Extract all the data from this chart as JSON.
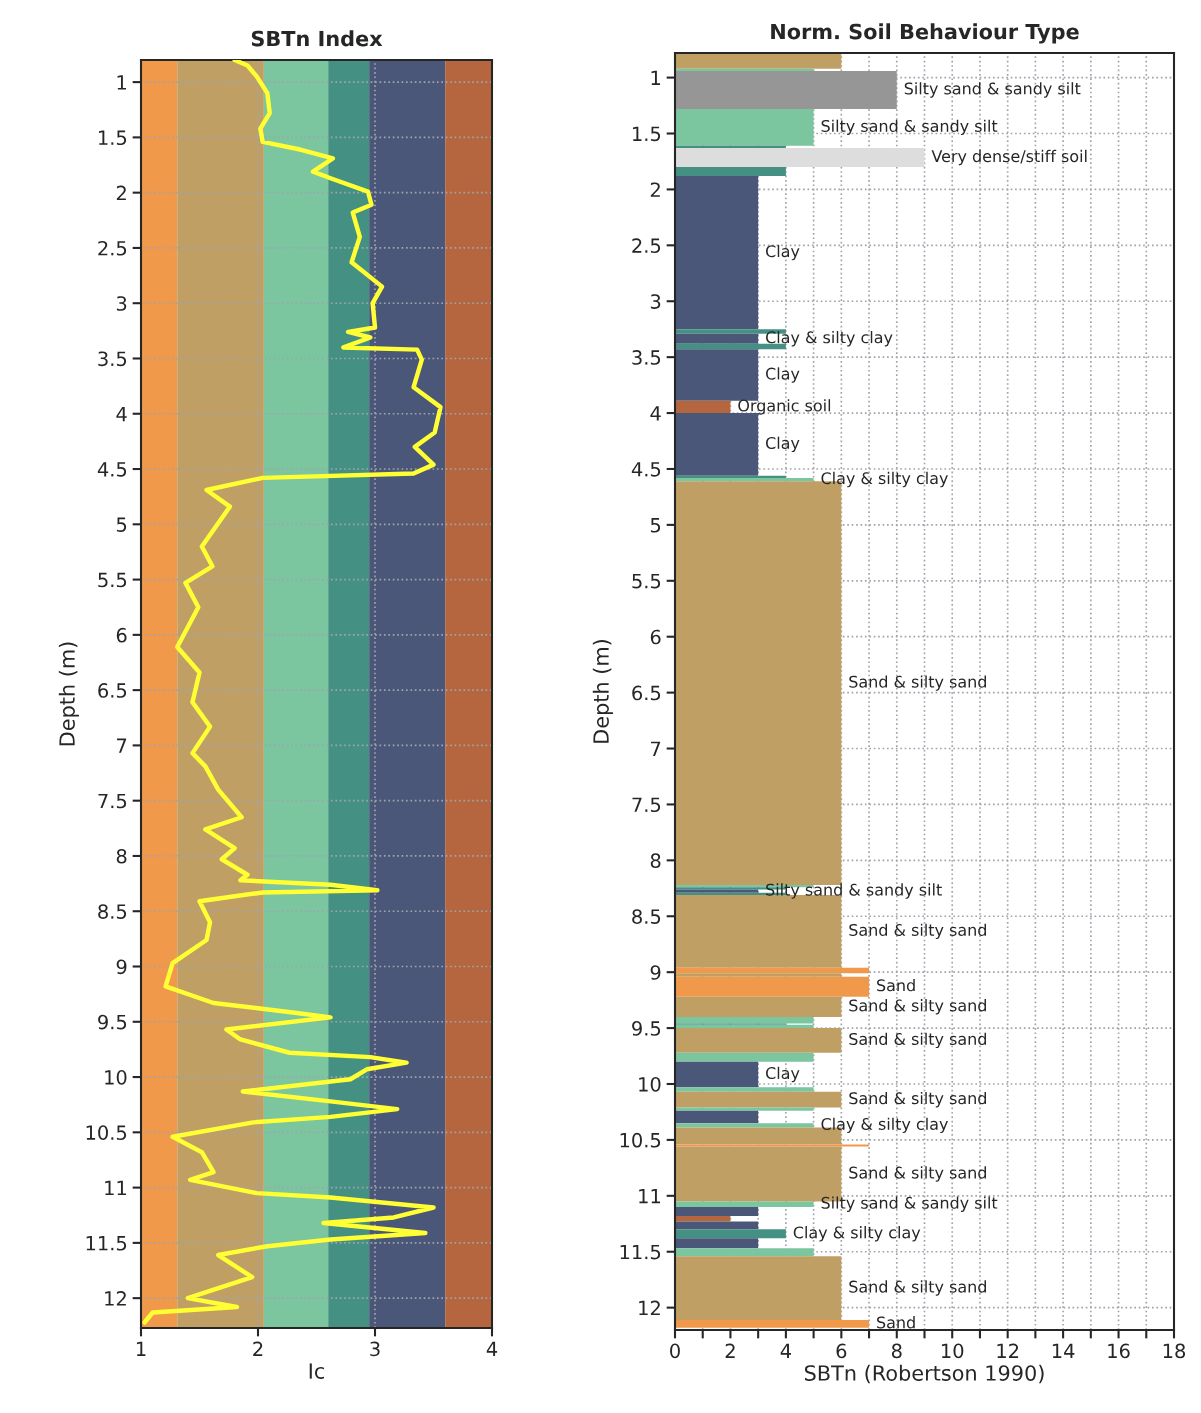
{
  "chart_data": [
    {
      "type": "line",
      "title": "SBTn Index",
      "xlabel": "Ic",
      "ylabel": "Depth (m)",
      "xlim": [
        1,
        4
      ],
      "xticks": [
        1,
        2,
        3,
        4
      ],
      "ylim": [
        12.27,
        0.8
      ],
      "yticks": [
        1,
        1.5,
        2,
        2.5,
        3,
        3.5,
        4,
        4.5,
        5,
        5.5,
        6,
        6.5,
        7,
        7.5,
        8,
        8.5,
        9,
        9.5,
        10,
        10.5,
        11,
        11.5,
        12
      ],
      "grid": true,
      "bands": [
        {
          "axis": "x",
          "from": 1,
          "to": 1.31,
          "color": "#f0994a"
        },
        {
          "axis": "x",
          "from": 1.31,
          "to": 2.05,
          "color": "#bf9f63"
        },
        {
          "axis": "x",
          "from": 2.05,
          "to": 2.6,
          "color": "#7bc59f"
        },
        {
          "axis": "x",
          "from": 2.6,
          "to": 2.95,
          "color": "#449083"
        },
        {
          "axis": "x",
          "from": 2.95,
          "to": 3.6,
          "color": "#4a5778"
        },
        {
          "axis": "x",
          "from": 3.6,
          "to": 4,
          "color": "#b5663e"
        }
      ],
      "series": [
        {
          "color": "#ffff33",
          "x": [
            1.8,
            1.91,
            1.99,
            2.08,
            2.1,
            2.02,
            2.04,
            2.36,
            2.64,
            2.47,
            2.62,
            2.94,
            2.97,
            2.81,
            2.87,
            2.8,
            3.06,
            2.98,
            3.0,
            2.77,
            2.96,
            2.73,
            3.36,
            3.4,
            3.33,
            3.56,
            3.51,
            3.34,
            3.5,
            3.33,
            2.04,
            1.56,
            1.76,
            1.52,
            1.61,
            1.38,
            1.49,
            1.31,
            1.5,
            1.44,
            1.59,
            1.44,
            1.55,
            1.66,
            1.86,
            1.55,
            1.8,
            1.69,
            1.91,
            1.85,
            2.62,
            3.02,
            2.04,
            1.56,
            1.5,
            1.59,
            1.56,
            1.27,
            1.21,
            1.62,
            2.33,
            2.62,
            1.73,
            1.85,
            2.27,
            2.96,
            3.27,
            2.93,
            2.79,
            1.87,
            2.62,
            3.19,
            2.62,
            1.96,
            1.27,
            1.52,
            1.62,
            1.42,
            1.99,
            2.62,
            3.5,
            3.16,
            2.56,
            3.43,
            2.62,
            2.08,
            1.66,
            1.95,
            1.4,
            1.82,
            1.1,
            1.03
          ],
          "values": [
            0.8,
            0.85,
            0.95,
            1.1,
            1.28,
            1.42,
            1.54,
            1.61,
            1.69,
            1.81,
            1.87,
            1.99,
            2.11,
            2.18,
            2.4,
            2.63,
            2.85,
            3.0,
            3.22,
            3.26,
            3.31,
            3.4,
            3.42,
            3.51,
            3.76,
            3.94,
            4.17,
            4.3,
            4.46,
            4.54,
            4.58,
            4.69,
            4.84,
            5.2,
            5.38,
            5.53,
            5.75,
            6.11,
            6.34,
            6.61,
            6.83,
            7.07,
            7.19,
            7.4,
            7.65,
            7.76,
            7.93,
            8.03,
            8.17,
            8.22,
            8.26,
            8.31,
            8.33,
            8.4,
            8.41,
            8.6,
            8.76,
            8.97,
            9.18,
            9.33,
            9.42,
            9.46,
            9.57,
            9.66,
            9.78,
            9.82,
            9.87,
            9.93,
            10.02,
            10.13,
            10.22,
            10.29,
            10.36,
            10.41,
            10.54,
            10.68,
            10.86,
            10.93,
            11.05,
            11.09,
            11.18,
            11.27,
            11.32,
            11.41,
            11.47,
            11.53,
            11.61,
            11.81,
            12.0,
            12.08,
            12.13,
            12.22
          ]
        }
      ]
    },
    {
      "type": "histogram",
      "orientation": "horizontal",
      "title": "Norm. Soil Behaviour Type",
      "xlabel": "SBTn (Robertson 1990)",
      "ylabel": "Depth (m)",
      "xlim": [
        0,
        18
      ],
      "xticks": [
        0,
        {
          "value": 1,
          "label": null
        },
        2,
        {
          "value": 3,
          "label": null
        },
        4,
        {
          "value": 5,
          "label": null
        },
        6,
        {
          "value": 7,
          "label": null
        },
        8,
        {
          "value": 9,
          "label": null
        },
        10,
        {
          "value": 11,
          "label": null
        },
        12,
        {
          "value": 13,
          "label": null
        },
        14,
        {
          "value": 15,
          "label": null
        },
        16,
        {
          "value": 17,
          "label": null
        },
        18
      ],
      "ylim": [
        12.2,
        0.78
      ],
      "yticks": [
        1,
        1.5,
        2,
        2.5,
        3,
        3.5,
        4,
        4.5,
        5,
        5.5,
        6,
        6.5,
        7,
        7.5,
        8,
        8.5,
        9,
        9.5,
        10,
        10.5,
        11,
        11.5,
        12
      ],
      "grid": true,
      "bins": [
        0.78,
        0.92,
        0.94,
        1.28,
        1.61,
        1.63,
        1.8,
        1.88,
        3.25,
        3.29,
        3.38,
        3.43,
        3.89,
        4.0,
        4.56,
        4.58,
        4.61,
        8.22,
        8.24,
        8.26,
        8.29,
        8.31,
        8.96,
        9.01,
        9.04,
        9.22,
        9.4,
        9.46,
        9.47,
        9.5,
        9.72,
        9.8,
        10.03,
        10.07,
        10.21,
        10.24,
        10.35,
        10.39,
        10.54,
        10.56,
        11.05,
        11.1,
        11.18,
        11.23,
        11.3,
        11.38,
        11.47,
        11.54,
        12.11,
        12.18
      ],
      "values": [
        6,
        5,
        8,
        5,
        4,
        9,
        4,
        3,
        4,
        3,
        4,
        3,
        2,
        3,
        4,
        5,
        6,
        5,
        4,
        3,
        4,
        6,
        7,
        6,
        7,
        6,
        5,
        4,
        5,
        6,
        5,
        3,
        5,
        6,
        5,
        3,
        5,
        6,
        7,
        6,
        5,
        3,
        2,
        3,
        4,
        3,
        5,
        6,
        7
      ],
      "colors": [
        "#bf9f63",
        "#7bc59f",
        "#969696",
        "#7bc59f",
        "#449083",
        "#dddddd",
        "#449083",
        "#4a5778",
        "#449083",
        "#4a5778",
        "#449083",
        "#4a5778",
        "#b5663e",
        "#4a5778",
        "#449083",
        "#7bc59f",
        "#bf9f63",
        "#7bc59f",
        "#449083",
        "#4a5778",
        "#449083",
        "#bf9f63",
        "#f0994a",
        "#bf9f63",
        "#f0994a",
        "#bf9f63",
        "#7bc59f",
        "#449083",
        "#7bc59f",
        "#bf9f63",
        "#7bc59f",
        "#4a5778",
        "#7bc59f",
        "#bf9f63",
        "#7bc59f",
        "#4a5778",
        "#7bc59f",
        "#bf9f63",
        "#f0994a",
        "#bf9f63",
        "#7bc59f",
        "#4a5778",
        "#b5663e",
        "#4a5778",
        "#449083",
        "#4a5778",
        "#7bc59f",
        "#bf9f63",
        "#f0994a"
      ],
      "value_labels": [
        null,
        null,
        "Silty sand & sandy silt",
        "Silty sand & sandy silt",
        null,
        "Very dense/stiff soil",
        null,
        "Clay",
        null,
        "Clay & silty clay",
        null,
        "Clay",
        "Organic soil",
        "Clay",
        null,
        "Clay & silty clay",
        "Sand & silty sand",
        null,
        null,
        "Silty sand & sandy silt",
        null,
        "Sand & silty sand",
        null,
        null,
        "Sand",
        "Sand & silty sand",
        null,
        null,
        null,
        "Sand & silty sand",
        null,
        "Clay",
        null,
        "Sand & silty sand",
        null,
        null,
        "Clay & silty clay",
        null,
        null,
        "Sand & silty sand",
        "Silty sand & sandy silt",
        null,
        null,
        null,
        "Clay & silty clay",
        null,
        null,
        "Sand & silty sand",
        "Sand"
      ]
    }
  ]
}
